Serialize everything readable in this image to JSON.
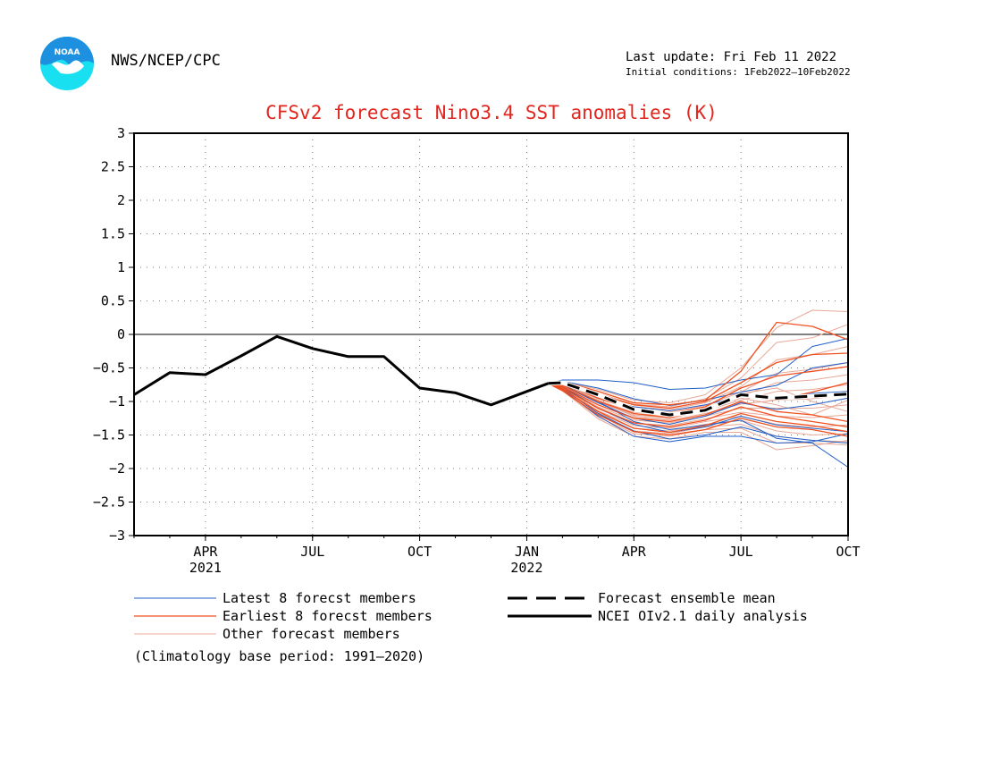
{
  "header": {
    "org": "NWS/NCEP/CPC",
    "last_update": "Last update: Fri Feb 11 2022",
    "initial_conditions": "Initial conditions: 1Feb2022–10Feb2022",
    "title": "CFSv2 forecast Nino3.4 SST anomalies (K)"
  },
  "footer": {
    "climatology": "(Climatology base period: 1991–2020)"
  },
  "colors": {
    "latest": "#1f5fc8",
    "earliest": "#f0501e",
    "other": "#e8a898",
    "observed": "#000000",
    "title": "#e0261e",
    "logo": "#1e90e0",
    "logo_cyan": "#18e0f0"
  },
  "logo": {
    "icon": "noaa-logo-icon",
    "text": "NOAA"
  },
  "chart_data": {
    "type": "line",
    "xlim": [
      0,
      20
    ],
    "ylim": [
      -3,
      3
    ],
    "yticks": [
      3,
      2.5,
      2,
      1.5,
      1,
      0.5,
      0,
      -0.5,
      -1,
      -1.5,
      -2,
      -2.5,
      -3
    ],
    "ytick_labels": [
      "3",
      "2.5",
      "2",
      "1.5",
      "1",
      "0.5",
      "0",
      "−0.5",
      "−1",
      "−1.5",
      "−2",
      "−2.5",
      "−3"
    ],
    "xticks": [
      {
        "x": 2,
        "label": "APR",
        "year": "2021"
      },
      {
        "x": 5,
        "label": "JUL",
        "year": ""
      },
      {
        "x": 8,
        "label": "OCT",
        "year": ""
      },
      {
        "x": 11,
        "label": "JAN",
        "year": "2022"
      },
      {
        "x": 14,
        "label": "APR",
        "year": ""
      },
      {
        "x": 17,
        "label": "JUL",
        "year": ""
      },
      {
        "x": 20,
        "label": "OCT",
        "year": ""
      }
    ],
    "legend": [
      {
        "label": "Latest 8 forecst members",
        "style": "latest"
      },
      {
        "label": "Earliest 8 forecst members",
        "style": "earliest"
      },
      {
        "label": "Other forecast members",
        "style": "other"
      },
      {
        "label": "Forecast ensemble mean",
        "style": "mean"
      },
      {
        "label": "NCEI OIv2.1 daily analysis",
        "style": "observed"
      }
    ],
    "observed": {
      "x": [
        0,
        1,
        2,
        3,
        4,
        5,
        6,
        7,
        8,
        9,
        10,
        11,
        11.6
      ],
      "y": [
        -0.9,
        -0.57,
        -0.6,
        -0.32,
        -0.03,
        -0.21,
        -0.33,
        -0.33,
        -0.8,
        -0.87,
        -1.05,
        -0.85,
        -0.73
      ]
    },
    "forecast_x": [
      11.6,
      12,
      13,
      14,
      15,
      16,
      17,
      18,
      19,
      20
    ],
    "ensemble_mean": [
      -0.73,
      -0.72,
      -0.9,
      -1.12,
      -1.2,
      -1.13,
      -0.9,
      -0.95,
      -0.92,
      -0.89
    ],
    "latest_members": [
      [
        -0.73,
        -0.68,
        -0.68,
        -0.72,
        -0.82,
        -0.8,
        -0.68,
        -0.6,
        -0.18,
        -0.06
      ],
      [
        -0.73,
        -0.7,
        -0.8,
        -0.96,
        -1.06,
        -0.98,
        -0.86,
        -0.76,
        -0.5,
        -0.42
      ],
      [
        -0.73,
        -0.74,
        -0.95,
        -1.08,
        -1.14,
        -1.05,
        -0.92,
        -0.97,
        -0.88,
        -0.85
      ],
      [
        -0.73,
        -0.76,
        -1.02,
        -1.25,
        -1.34,
        -1.22,
        -1.02,
        -1.12,
        -1.05,
        -0.95
      ],
      [
        -0.73,
        -0.78,
        -1.1,
        -1.34,
        -1.46,
        -1.38,
        -1.22,
        -1.35,
        -1.4,
        -1.45
      ],
      [
        -0.73,
        -0.8,
        -1.18,
        -1.44,
        -1.56,
        -1.5,
        -1.38,
        -1.52,
        -1.58,
        -1.62
      ],
      [
        -0.73,
        -0.82,
        -1.22,
        -1.52,
        -1.6,
        -1.52,
        -1.52,
        -1.62,
        -1.6,
        -1.48
      ],
      [
        -0.73,
        -0.75,
        -1.0,
        -1.3,
        -1.42,
        -1.35,
        -1.28,
        -1.55,
        -1.62,
        -1.98
      ]
    ],
    "earliest_members": [
      [
        -0.73,
        -0.7,
        -0.85,
        -1.02,
        -1.05,
        -0.98,
        -0.55,
        0.18,
        0.12,
        -0.08
      ],
      [
        -0.73,
        -0.72,
        -0.9,
        -1.05,
        -1.1,
        -1.0,
        -0.72,
        -0.42,
        -0.3,
        -0.28
      ],
      [
        -0.73,
        -0.74,
        -0.95,
        -1.12,
        -1.18,
        -1.08,
        -0.8,
        -0.62,
        -0.55,
        -0.48
      ],
      [
        -0.73,
        -0.76,
        -1.0,
        -1.18,
        -1.24,
        -1.12,
        -0.92,
        -0.98,
        -0.86,
        -0.72
      ],
      [
        -0.73,
        -0.78,
        -1.05,
        -1.25,
        -1.3,
        -1.2,
        -1.0,
        -1.15,
        -1.2,
        -1.3
      ],
      [
        -0.73,
        -0.8,
        -1.1,
        -1.32,
        -1.38,
        -1.28,
        -1.08,
        -1.22,
        -1.3,
        -1.38
      ],
      [
        -0.73,
        -0.82,
        -1.15,
        -1.4,
        -1.46,
        -1.36,
        -1.18,
        -1.3,
        -1.36,
        -1.45
      ],
      [
        -0.73,
        -0.84,
        -1.2,
        -1.45,
        -1.5,
        -1.42,
        -1.25,
        -1.38,
        -1.42,
        -1.52
      ]
    ],
    "other_members": [
      [
        -0.73,
        -0.7,
        -0.82,
        -0.98,
        -1.02,
        -0.9,
        -0.5,
        0.1,
        0.36,
        0.34
      ],
      [
        -0.73,
        -0.72,
        -0.88,
        -1.04,
        -1.08,
        -0.96,
        -0.65,
        -0.12,
        -0.05,
        0.15
      ],
      [
        -0.73,
        -0.73,
        -0.92,
        -1.08,
        -1.12,
        -1.02,
        -0.78,
        -0.38,
        -0.3,
        -0.18
      ],
      [
        -0.73,
        -0.74,
        -0.96,
        -1.12,
        -1.16,
        -1.06,
        -0.86,
        -0.58,
        -0.52,
        -0.42
      ],
      [
        -0.73,
        -0.75,
        -0.99,
        -1.16,
        -1.2,
        -1.1,
        -0.92,
        -0.72,
        -0.68,
        -0.6
      ],
      [
        -0.73,
        -0.76,
        -1.02,
        -1.2,
        -1.24,
        -1.14,
        -0.98,
        -0.85,
        -0.82,
        -0.75
      ],
      [
        -0.73,
        -0.77,
        -1.05,
        -1.24,
        -1.28,
        -1.18,
        -1.04,
        -0.98,
        -0.96,
        -0.9
      ],
      [
        -0.73,
        -0.78,
        -1.08,
        -1.28,
        -1.32,
        -1.22,
        -1.1,
        -1.1,
        -1.1,
        -1.05
      ],
      [
        -0.73,
        -0.79,
        -1.11,
        -1.32,
        -1.36,
        -1.26,
        -1.16,
        -1.22,
        -1.24,
        -1.2
      ],
      [
        -0.73,
        -0.8,
        -1.14,
        -1.36,
        -1.4,
        -1.3,
        -1.22,
        -1.34,
        -1.38,
        -1.35
      ],
      [
        -0.73,
        -0.81,
        -1.17,
        -1.4,
        -1.44,
        -1.34,
        -1.28,
        -1.44,
        -1.5,
        -1.48
      ],
      [
        -0.73,
        -0.82,
        -1.2,
        -1.44,
        -1.48,
        -1.38,
        -1.34,
        -1.52,
        -1.58,
        -1.6
      ],
      [
        -0.73,
        -0.83,
        -1.23,
        -1.48,
        -1.52,
        -1.42,
        -1.4,
        -1.62,
        -1.62,
        -1.65
      ],
      [
        -0.73,
        -0.84,
        -1.26,
        -1.52,
        -1.56,
        -1.46,
        -1.46,
        -1.72,
        -1.66,
        -1.58
      ],
      [
        -0.73,
        -0.76,
        -0.98,
        -1.18,
        -1.22,
        -1.1,
        -0.88,
        -0.8,
        -1.0,
        -1.15
      ],
      [
        -0.73,
        -0.75,
        -1.0,
        -1.22,
        -1.26,
        -1.12,
        -0.95,
        -1.05,
        -1.2,
        -0.98
      ]
    ]
  }
}
